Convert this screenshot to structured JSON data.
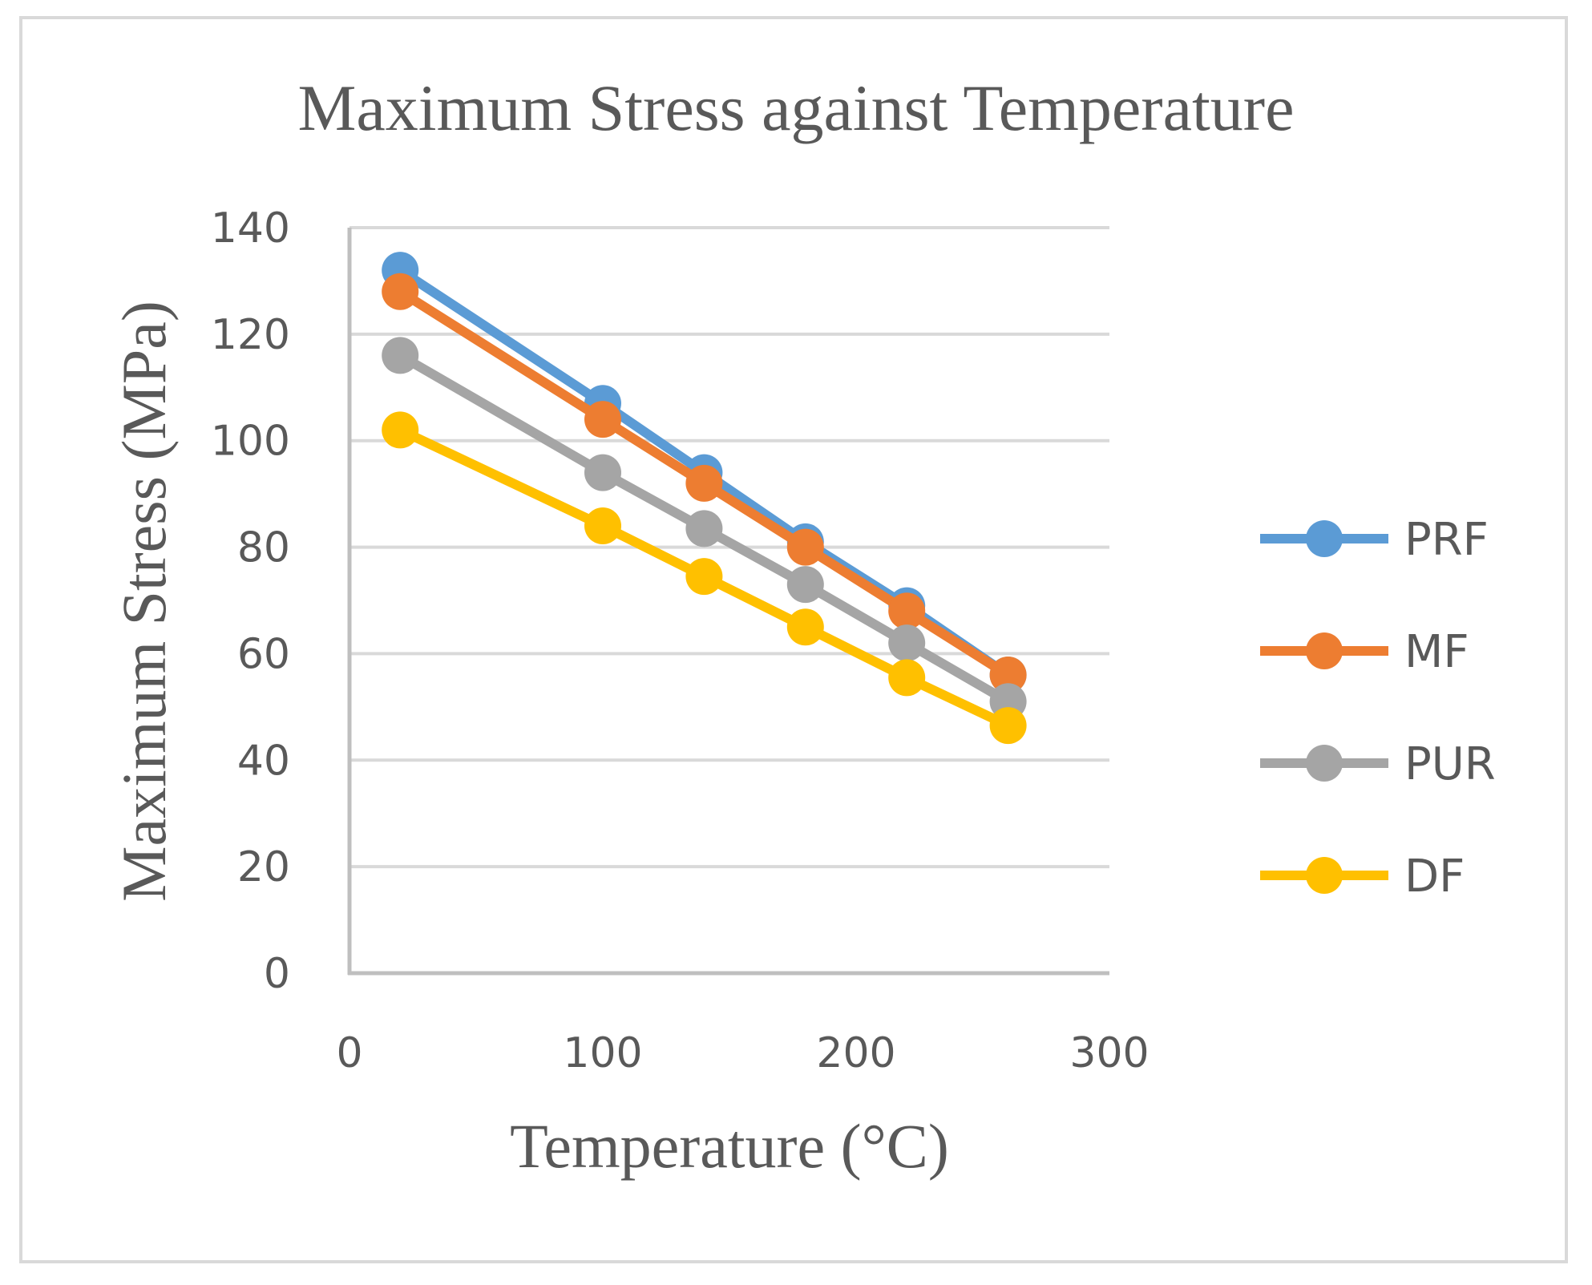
{
  "chart_data": {
    "type": "line",
    "title": "Maximum Stress against Temperature",
    "xlabel": "Temperature (°C)",
    "ylabel": "Maximum Stress (MPa)",
    "xlim": [
      0,
      300
    ],
    "ylim": [
      0,
      140
    ],
    "xticks": [
      0,
      100,
      200,
      300
    ],
    "yticks": [
      0,
      20,
      40,
      60,
      80,
      100,
      120,
      140
    ],
    "grid": "horizontal",
    "legend_position": "right",
    "x": [
      20,
      100,
      140,
      180,
      220,
      260
    ],
    "series": [
      {
        "name": "PRF",
        "color": "#5b9bd5",
        "values": [
          132,
          107,
          94,
          81,
          69,
          56
        ]
      },
      {
        "name": "MF",
        "color": "#ed7d31",
        "values": [
          128,
          104,
          92,
          80,
          68,
          56
        ]
      },
      {
        "name": "PUR",
        "color": "#a5a5a5",
        "values": [
          116,
          94,
          83.5,
          73,
          62,
          51
        ]
      },
      {
        "name": "DF",
        "color": "#ffc000",
        "values": [
          102,
          84,
          74.5,
          65,
          55.5,
          46.5
        ]
      }
    ]
  }
}
